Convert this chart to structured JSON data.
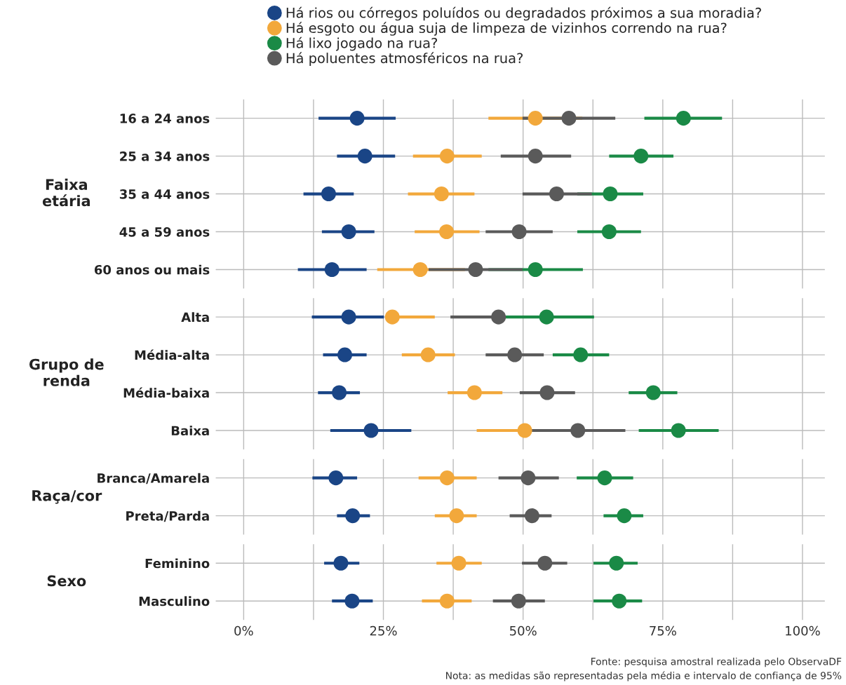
{
  "chart_data": [
    {
      "type": "scatter",
      "orientation": "horizontal",
      "ylabel": "Faixa etária",
      "legend": "top",
      "grid": true,
      "tick_labels": "y",
      "categories": [
        "16 a 24 anos",
        "25 a 34 anos",
        "35 a 44 anos",
        "45 a 59 anos",
        "60 anos ou mais"
      ],
      "xlim": [
        -5,
        104
      ],
      "series": [
        {
          "name": "Há rios ou córregos poluídos ou degradados próximos a sua moradia?",
          "color": "#1a4586",
          "values": [
            20.3,
            21.7,
            15.2,
            18.8,
            15.8
          ],
          "errors": [
            [
              13.4,
              27.2
            ],
            [
              16.7,
              27.1
            ],
            [
              10.7,
              19.7
            ],
            [
              14.0,
              23.4
            ],
            [
              9.7,
              22.0
            ]
          ]
        },
        {
          "name": "Há esgoto ou água suja de limpeza de vizinhos correndo na rua?",
          "color": "#f2a83b",
          "values": [
            52.2,
            36.4,
            35.4,
            36.3,
            31.6
          ],
          "errors": [
            [
              43.8,
              60.6
            ],
            [
              30.3,
              42.6
            ],
            [
              29.4,
              41.3
            ],
            [
              30.6,
              42.2
            ],
            [
              23.9,
              39.6
            ]
          ]
        },
        {
          "name": "Há lixo jogado na rua?",
          "color": "#1a8a46",
          "values": [
            78.7,
            71.1,
            65.6,
            65.4,
            52.2
          ],
          "errors": [
            [
              71.7,
              85.6
            ],
            [
              65.4,
              76.9
            ],
            [
              59.7,
              71.5
            ],
            [
              59.7,
              71.1
            ],
            [
              43.8,
              60.7
            ]
          ]
        },
        {
          "name": "Há poluentes atmosféricos na rua?",
          "color": "#5a5a5a",
          "values": [
            58.2,
            52.2,
            56.0,
            49.3,
            41.5
          ],
          "errors": [
            [
              49.9,
              66.5
            ],
            [
              46.0,
              58.6
            ],
            [
              49.9,
              62.3
            ],
            [
              43.3,
              55.3
            ],
            [
              33.1,
              49.9
            ]
          ]
        }
      ]
    },
    {
      "type": "scatter",
      "orientation": "horizontal",
      "ylabel": "Grupo de renda",
      "grid": true,
      "tick_labels": "y",
      "categories": [
        "Alta",
        "Média-alta",
        "Média-baixa",
        "Baixa"
      ],
      "xlim": [
        -5,
        104
      ],
      "series": [
        {
          "color": "#1a4586",
          "values": [
            18.8,
            18.1,
            17.1,
            22.8
          ],
          "errors": [
            [
              12.2,
              25.1
            ],
            [
              14.2,
              22.0
            ],
            [
              13.3,
              20.8
            ],
            [
              15.5,
              30.0
            ]
          ]
        },
        {
          "color": "#f2a83b",
          "values": [
            26.6,
            33.0,
            41.3,
            50.3
          ],
          "errors": [
            [
              26.6,
              34.2
            ],
            [
              28.3,
              37.8
            ],
            [
              36.5,
              46.3
            ],
            [
              41.7,
              58.7
            ]
          ]
        },
        {
          "color": "#1a8a46",
          "values": [
            54.2,
            60.3,
            73.3,
            77.8
          ],
          "errors": [
            [
              46.5,
              62.7
            ],
            [
              55.3,
              65.4
            ],
            [
              68.9,
              77.6
            ],
            [
              70.7,
              85.0
            ]
          ]
        },
        {
          "color": "#5a5a5a",
          "values": [
            45.6,
            48.5,
            54.3,
            59.8
          ],
          "errors": [
            [
              37.0,
              45.6
            ],
            [
              43.3,
              53.7
            ],
            [
              49.4,
              59.3
            ],
            [
              51.4,
              68.3
            ]
          ]
        }
      ]
    },
    {
      "type": "scatter",
      "orientation": "horizontal",
      "ylabel": "Raça/cor",
      "grid": true,
      "tick_labels": "y",
      "categories": [
        "Branca/Amarela",
        "Preta/Parda"
      ],
      "xlim": [
        -5,
        104
      ],
      "series": [
        {
          "color": "#1a4586",
          "values": [
            16.5,
            19.5
          ],
          "errors": [
            [
              12.3,
              20.3
            ],
            [
              16.7,
              22.6
            ]
          ]
        },
        {
          "color": "#f2a83b",
          "values": [
            36.4,
            38.1
          ],
          "errors": [
            [
              31.3,
              41.7
            ],
            [
              34.2,
              41.7
            ]
          ]
        },
        {
          "color": "#1a8a46",
          "values": [
            64.6,
            68.1
          ],
          "errors": [
            [
              59.6,
              69.7
            ],
            [
              64.4,
              71.5
            ]
          ]
        },
        {
          "color": "#5a5a5a",
          "values": [
            50.9,
            51.6
          ],
          "errors": [
            [
              45.6,
              56.4
            ],
            [
              47.6,
              55.1
            ]
          ]
        }
      ]
    },
    {
      "type": "scatter",
      "orientation": "horizontal",
      "ylabel": "Sexo",
      "grid": true,
      "categories": [
        "Feminino",
        "Masculino"
      ],
      "xlim": [
        -5,
        104
      ],
      "xticks": [
        {
          "value": 0,
          "label": "0%"
        },
        {
          "value": 12.5,
          "label": null
        },
        {
          "value": 25,
          "label": "25%"
        },
        {
          "value": 37.5,
          "label": null
        },
        {
          "value": 50,
          "label": "50%"
        },
        {
          "value": 62.5,
          "label": null
        },
        {
          "value": 75,
          "label": "75%"
        },
        {
          "value": 87.5,
          "label": null
        },
        {
          "value": 100,
          "label": "100%"
        }
      ],
      "annotations": [
        "Fonte: pesquisa amostral realizada pelo ObservaDF",
        "Nota: as medidas são representadas pela média e intervalo de confiança de 95%"
      ],
      "series": [
        {
          "color": "#1a4586",
          "values": [
            17.4,
            19.4
          ],
          "errors": [
            [
              14.4,
              20.7
            ],
            [
              15.8,
              23.1
            ]
          ]
        },
        {
          "color": "#f2a83b",
          "values": [
            38.5,
            36.4
          ],
          "errors": [
            [
              34.5,
              42.6
            ],
            [
              31.9,
              40.8
            ]
          ]
        },
        {
          "color": "#1a8a46",
          "values": [
            66.7,
            67.2
          ],
          "errors": [
            [
              62.6,
              70.5
            ],
            [
              62.6,
              71.3
            ]
          ]
        },
        {
          "color": "#5a5a5a",
          "values": [
            53.9,
            49.2
          ],
          "errors": [
            [
              49.8,
              57.9
            ],
            [
              44.6,
              53.9
            ]
          ]
        }
      ]
    }
  ]
}
